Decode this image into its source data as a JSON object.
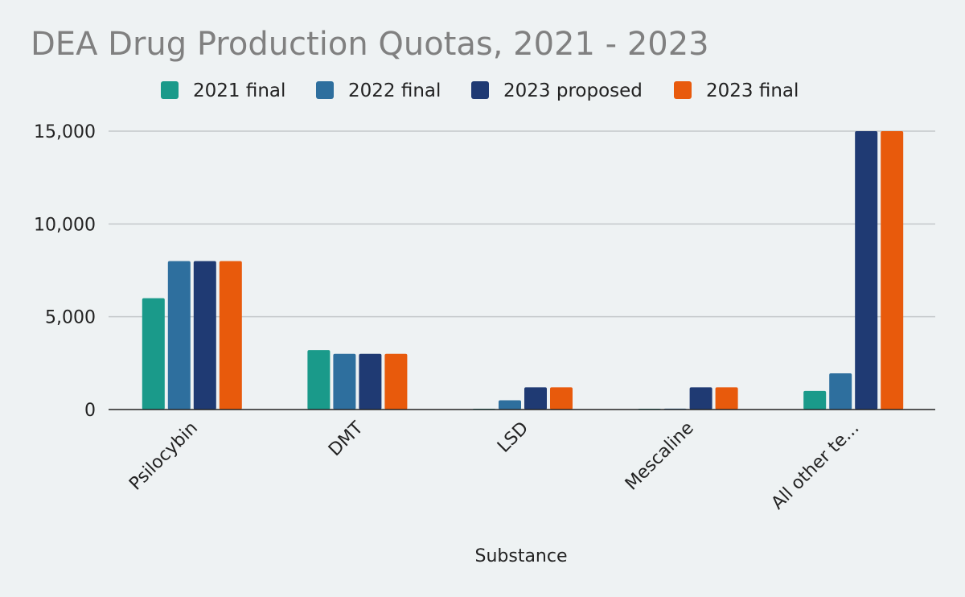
{
  "chart_data": {
    "type": "bar",
    "title": "DEA Drug Production Quotas, 2021 - 2023",
    "xlabel": "Substance",
    "ylabel": "",
    "categories": [
      "Psilocybin",
      "DMT",
      "LSD",
      "Mescaline",
      "All other te..."
    ],
    "series": [
      {
        "name": "2021 final",
        "color": "#1a9a8a",
        "values": [
          6000,
          3200,
          40,
          40,
          1000
        ]
      },
      {
        "name": "2022 final",
        "color": "#2e6f9e",
        "values": [
          8000,
          3000,
          500,
          50,
          1950
        ]
      },
      {
        "name": "2023 proposed",
        "color": "#1f3a73",
        "values": [
          8000,
          3000,
          1200,
          1200,
          15000
        ]
      },
      {
        "name": "2023 final",
        "color": "#e85a0c",
        "values": [
          8000,
          3000,
          1200,
          1200,
          15000
        ]
      }
    ],
    "ylim": [
      0,
      15000
    ],
    "yticks": [
      {
        "value": 0,
        "label": "0"
      },
      {
        "value": 5000,
        "label": "5,000"
      },
      {
        "value": 10000,
        "label": "10,000"
      },
      {
        "value": 15000,
        "label": "15,000"
      }
    ],
    "grid": true,
    "legend_position": "top"
  }
}
